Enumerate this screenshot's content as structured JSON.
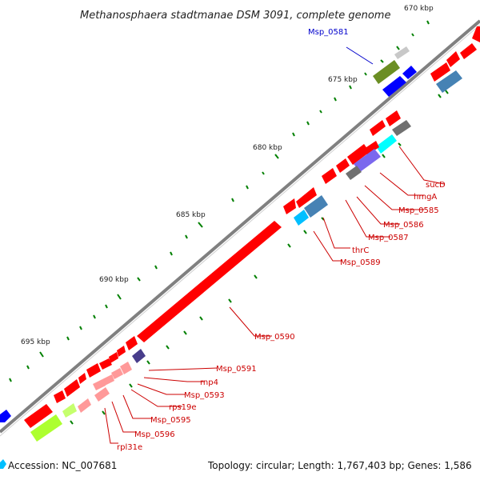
{
  "title": "Methanosphaera stadtmanae DSM 3091, complete genome",
  "kbp_labels": [
    "670 kbp",
    "675 kbp",
    "680 kbp",
    "685 kbp",
    "690 kbp",
    "695 kbp"
  ],
  "gene_labels": [
    {
      "text": "Msp_0581",
      "color": "#0000cc"
    },
    {
      "text": "sucD",
      "color": "#cc0000"
    },
    {
      "text": "hmgA",
      "color": "#cc0000"
    },
    {
      "text": "Msp_0585",
      "color": "#cc0000"
    },
    {
      "text": "Msp_0586",
      "color": "#cc0000"
    },
    {
      "text": "Msp_0587",
      "color": "#cc0000"
    },
    {
      "text": "thrC",
      "color": "#cc0000"
    },
    {
      "text": "Msp_0589",
      "color": "#cc0000"
    },
    {
      "text": "Msp_0590",
      "color": "#cc0000"
    },
    {
      "text": "Msp_0591",
      "color": "#cc0000"
    },
    {
      "text": "rnp4",
      "color": "#cc0000"
    },
    {
      "text": "Msp_0593",
      "color": "#cc0000"
    },
    {
      "text": "rps19e",
      "color": "#cc0000"
    },
    {
      "text": "Msp_0595",
      "color": "#cc0000"
    },
    {
      "text": "Msp_0596",
      "color": "#cc0000"
    },
    {
      "text": "rpl31e",
      "color": "#cc0000"
    }
  ],
  "footer": {
    "accession": "Accession: NC_007681",
    "summary": "Topology: circular; Length: 1,767,403 bp; Genes: 1,586"
  },
  "colors": {
    "backbone": "#808080",
    "cds": "#ff0000",
    "cds_light": "#ff9999",
    "rna_blue": "#0000ff",
    "olive": "#6b8e23",
    "steelblue": "#4682b4",
    "gray": "#707070",
    "cyan": "#00ffff",
    "slate": "#7b68ee",
    "navy": "#483d8b",
    "lime": "#adff2f",
    "tick": "#008000"
  }
}
